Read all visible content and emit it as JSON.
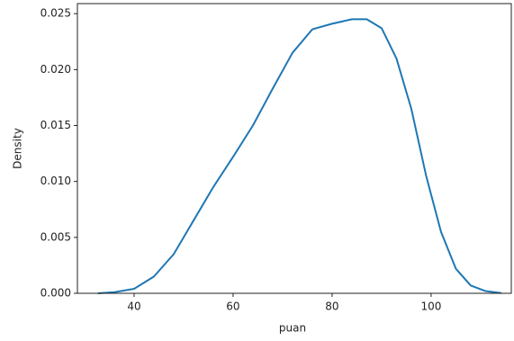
{
  "chart_data": {
    "type": "line",
    "x_label": "puan",
    "y_label": "Density",
    "x": [
      32.7,
      36,
      40,
      44,
      48,
      52,
      56,
      60,
      64,
      68,
      72,
      76,
      80,
      84,
      87,
      90,
      93,
      96,
      99,
      102,
      105,
      108,
      111,
      114.2
    ],
    "series": [
      {
        "color": "#1f77b4",
        "values": [
          0,
          0.0001,
          0.0004,
          0.0015,
          0.0035,
          0.0065,
          0.0095,
          0.0122,
          0.015,
          0.0183,
          0.0215,
          0.0236,
          0.0241,
          0.0245,
          0.0245,
          0.0237,
          0.021,
          0.0165,
          0.0105,
          0.0055,
          0.0022,
          0.0007,
          0.0002,
          2e-05
        ]
      }
    ],
    "xlim": [
      28.55,
      116.2
    ],
    "xticks": [
      40,
      60,
      80,
      100
    ],
    "ylim": [
      0,
      0.0259
    ],
    "yticks": [
      {
        "value": 0,
        "label": "0.000"
      },
      0.005,
      {
        "value": 0.01,
        "label": "0.010"
      },
      0.015,
      {
        "value": 0.02,
        "label": "0.020"
      },
      0.025
    ],
    "grid": false
  }
}
